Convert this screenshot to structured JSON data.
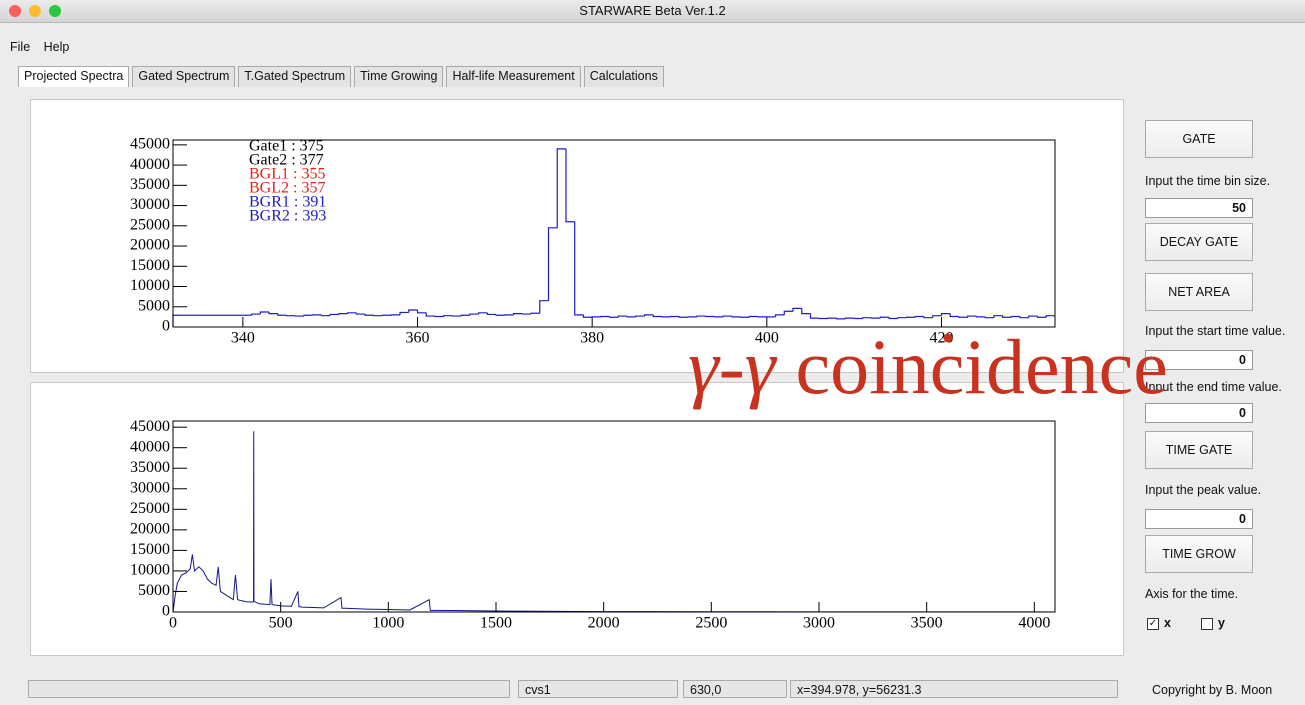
{
  "window": {
    "title": "STARWARE Beta Ver.1.2"
  },
  "menu": [
    "File",
    "Help"
  ],
  "tabs": [
    "Projected Spectra",
    "Gated Spectrum",
    "T.Gated Spectrum",
    "Time Growing",
    "Half-life Measurement",
    "Calculations"
  ],
  "chart_data": [
    {
      "type": "histogram",
      "color": "#1c1cc8",
      "bins": [
        332,
        333,
        334,
        335,
        336,
        337,
        338,
        339,
        340,
        341,
        342,
        343,
        344,
        345,
        346,
        347,
        348,
        349,
        350,
        351,
        352,
        353,
        354,
        355,
        356,
        357,
        358,
        359,
        360,
        361,
        362,
        363,
        364,
        365,
        366,
        367,
        368,
        369,
        370,
        371,
        372,
        373,
        374,
        375,
        376,
        377,
        378,
        379,
        380,
        381,
        382,
        383,
        384,
        385,
        386,
        387,
        388,
        389,
        390,
        391,
        392,
        393,
        394,
        395,
        396,
        397,
        398,
        399,
        400,
        401,
        402,
        403,
        404,
        405,
        406,
        407,
        408,
        409,
        410,
        411,
        412,
        413,
        414,
        415,
        416,
        417,
        418,
        419,
        420,
        421,
        422,
        423,
        424,
        425,
        426,
        427,
        428,
        429,
        430,
        431,
        432,
        433
      ],
      "counts": [
        2900,
        2900,
        2900,
        2900,
        2900,
        2900,
        2900,
        2900,
        2900,
        3200,
        3700,
        3300,
        2900,
        2800,
        2700,
        2900,
        3000,
        2800,
        3100,
        3300,
        3500,
        3200,
        2900,
        2800,
        2900,
        3000,
        3600,
        4200,
        3500,
        2700,
        2600,
        2800,
        2700,
        2900,
        3200,
        3500,
        3100,
        2900,
        3000,
        3300,
        3200,
        3400,
        6500,
        24500,
        44000,
        26000,
        3000,
        2400,
        2500,
        2600,
        2400,
        2700,
        2500,
        2700,
        3000,
        2600,
        2500,
        2600,
        2400,
        2500,
        2700,
        2600,
        2500,
        2700,
        2500,
        2400,
        2600,
        2500,
        2500,
        3000,
        3900,
        4600,
        3300,
        2200,
        2100,
        2200,
        2000,
        2200,
        2100,
        2300,
        2200,
        2400,
        2100,
        2300,
        2400,
        2600,
        2300,
        2800,
        3300,
        2600,
        2400,
        2700,
        2500,
        2300,
        2800,
        2400,
        2600,
        2300,
        2700,
        2400,
        2800
      ],
      "xlim": [
        332,
        433
      ],
      "xticks": [
        340,
        360,
        380,
        400,
        420
      ],
      "ylim": [
        0,
        46200
      ],
      "yticks": [
        0,
        5000,
        10000,
        15000,
        20000,
        25000,
        30000,
        35000,
        40000,
        45000
      ],
      "annotations": [
        {
          "text": "Gate1 : 375",
          "color": "#000000"
        },
        {
          "text": "Gate2 : 377",
          "color": "#000000"
        },
        {
          "text": "BGL1 : 355",
          "color": "#e8231c"
        },
        {
          "text": "BGL2 : 357",
          "color": "#e8231c"
        },
        {
          "text": "BGR1 : 391",
          "color": "#1c1cc8"
        },
        {
          "text": "BGR2 : 393",
          "color": "#1c1cc8"
        }
      ]
    },
    {
      "type": "line",
      "color": "#16168a",
      "x": [
        0,
        10,
        20,
        40,
        60,
        80,
        90,
        100,
        120,
        140,
        160,
        180,
        200,
        210,
        220,
        250,
        280,
        290,
        300,
        340,
        370,
        374,
        375,
        376,
        400,
        450,
        455,
        460,
        500,
        550,
        580,
        585,
        600,
        700,
        780,
        785,
        800,
        900,
        1000,
        1100,
        1190,
        1195,
        1200,
        1300,
        1400,
        1500,
        1600,
        1800,
        2000,
        2200,
        2500,
        3000,
        3500,
        4000,
        4096
      ],
      "values": [
        0,
        4000,
        7000,
        9000,
        9500,
        10500,
        14000,
        10000,
        11000,
        10000,
        8000,
        7000,
        6500,
        11000,
        5000,
        4000,
        3000,
        9000,
        3000,
        2500,
        2400,
        2500,
        44000,
        2600,
        2000,
        1800,
        8000,
        1800,
        1500,
        1400,
        5000,
        1300,
        1200,
        1000,
        3500,
        900,
        900,
        700,
        600,
        500,
        3000,
        400,
        400,
        350,
        300,
        250,
        200,
        150,
        100,
        80,
        60,
        40,
        30,
        20,
        0
      ],
      "xlim": [
        0,
        4096
      ],
      "xticks": [
        0,
        500,
        1000,
        1500,
        2000,
        2500,
        3000,
        3500,
        4000
      ],
      "ylim": [
        0,
        46500
      ],
      "yticks": [
        0,
        5000,
        10000,
        15000,
        20000,
        25000,
        30000,
        35000,
        40000,
        45000
      ]
    }
  ],
  "side_panel": {
    "items": [
      {
        "kind": "button",
        "text": "GATE"
      },
      {
        "kind": "label",
        "text": "Input the time bin size."
      },
      {
        "kind": "input",
        "value": 50
      },
      {
        "kind": "button",
        "text": "DECAY GATE"
      },
      {
        "kind": "button",
        "text": "NET AREA"
      },
      {
        "kind": "label",
        "text": "Input the start time value."
      },
      {
        "kind": "input",
        "value": 0
      },
      {
        "kind": "label",
        "text": "Input the end time value."
      },
      {
        "kind": "input",
        "value": 0
      },
      {
        "kind": "button",
        "text": "TIME GATE"
      },
      {
        "kind": "label",
        "text": "Input the peak value."
      },
      {
        "kind": "input",
        "value": 0
      },
      {
        "kind": "button",
        "text": "TIME GROW"
      },
      {
        "kind": "label",
        "text": "Axis for the time."
      }
    ],
    "checkboxes": [
      {
        "label": "x",
        "checked": true
      },
      {
        "label": "y",
        "checked": false
      }
    ]
  },
  "status_bar": [
    "cvs1",
    "630,0",
    "x=394.978, y=56231.3"
  ],
  "copyright": "Copyright by B. Moon",
  "overlay": {
    "symbol": "γ-γ",
    "word": "coincidence"
  }
}
